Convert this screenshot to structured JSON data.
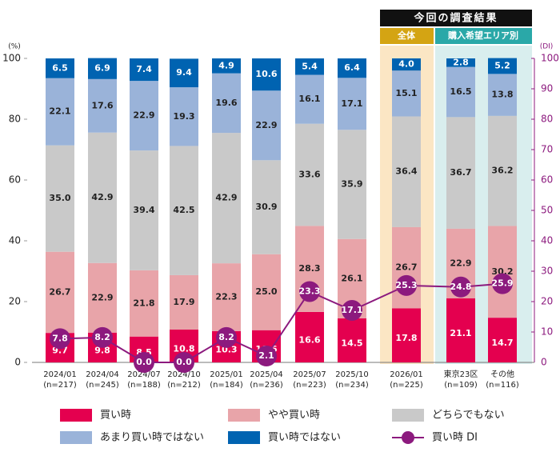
{
  "chart_data": {
    "type": "stacked_bar_line",
    "header": "今回の調査結果",
    "group_labels": [
      "全体",
      "購入希望エリア別"
    ],
    "ylabel": "(%)",
    "y2label": "(DI)",
    "categories": [
      "2024/01",
      "2024/04",
      "2024/07",
      "2024/10",
      "2025/01",
      "2025/04",
      "2025/07",
      "2025/10",
      "2026/01",
      "東京23区",
      "その他"
    ],
    "sample_labels": [
      "(n=217)",
      "(n=245)",
      "(n=188)",
      "(n=212)",
      "(n=184)",
      "(n=236)",
      "(n=223)",
      "(n=234)",
      "(n=225)",
      "(n=109)",
      "(n=116)"
    ],
    "ylim": [
      0,
      100
    ],
    "yticks": [
      0,
      20,
      40,
      60,
      80,
      100
    ],
    "y2lim": [
      0,
      100
    ],
    "y2ticks": [
      0,
      10,
      20,
      30,
      40,
      50,
      60,
      70,
      80,
      90,
      100
    ],
    "series": [
      {
        "name": "買い時",
        "color": "#e4004f",
        "values": [
          9.7,
          9.8,
          8.5,
          10.8,
          10.3,
          10.6,
          16.6,
          14.5,
          17.8,
          21.1,
          14.7
        ],
        "value_labels": [
          "9.7",
          "9.8",
          "8.5",
          "10.8",
          "10.3",
          "10.6",
          "16.6",
          "14.5",
          "17.8",
          "21.1",
          "14.7"
        ]
      },
      {
        "name": "やや買い時",
        "color": "#e8a4a9",
        "values": [
          26.7,
          22.9,
          21.8,
          17.9,
          22.3,
          25.0,
          28.3,
          26.1,
          26.7,
          22.9,
          30.2
        ],
        "value_labels": [
          "26.7",
          "22.9",
          "21.8",
          "17.9",
          "22.3",
          "25.0",
          "28.3",
          "26.1",
          "26.7",
          "22.9",
          "30.2"
        ]
      },
      {
        "name": "どちらでもない",
        "color": "#c9c9c9",
        "values": [
          35.0,
          42.9,
          39.4,
          42.5,
          42.9,
          30.9,
          33.6,
          35.9,
          36.4,
          36.7,
          36.2
        ],
        "value_labels": [
          "35.0",
          "42.9",
          "39.4",
          "42.5",
          "42.9",
          "30.9",
          "33.6",
          "35.9",
          "36.4",
          "36.7",
          "36.2"
        ]
      },
      {
        "name": "あまり買い時ではない",
        "color": "#9ab3d9",
        "values": [
          22.1,
          17.6,
          22.9,
          19.3,
          19.6,
          22.9,
          16.1,
          17.1,
          15.1,
          16.5,
          13.8
        ],
        "value_labels": [
          "22.1",
          "17.6",
          "22.9",
          "19.3",
          "19.6",
          "22.9",
          "16.1",
          "17.1",
          "15.1",
          "16.5",
          "13.8"
        ]
      },
      {
        "name": "買い時ではない",
        "color": "#0063b1",
        "values": [
          6.5,
          6.9,
          7.4,
          9.4,
          4.9,
          10.6,
          5.4,
          6.4,
          4.0,
          2.8,
          5.2
        ],
        "value_labels": [
          "6.5",
          "6.9",
          "7.4",
          "9.4",
          "4.9",
          "10.6",
          "5.4",
          "6.4",
          "4.0",
          "2.8",
          "5.2"
        ]
      },
      {
        "name": "買い時 DI",
        "type": "line",
        "axis": "y2",
        "color": "#8c1a7e",
        "values": [
          7.8,
          8.2,
          0.0,
          0.0,
          8.2,
          2.1,
          23.3,
          17.1,
          25.3,
          24.8,
          25.9
        ],
        "value_labels": [
          "7.8",
          "8.2",
          "0.0",
          "0.0",
          "8.2",
          "2.1",
          "23.3",
          "17.1",
          "25.3",
          "24.8",
          "25.9"
        ]
      }
    ]
  }
}
